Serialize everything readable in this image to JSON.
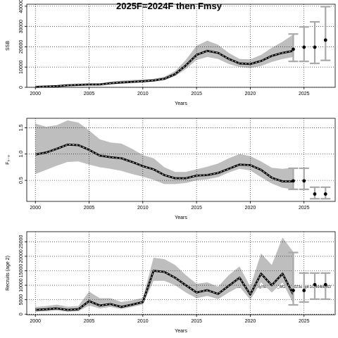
{
  "title": "2025F=2024F then Fmsy",
  "footer": "stockassessment.org:NWW005_WGBC_2023a : git:1c2464b6063",
  "colors": {
    "band": "#bebebe",
    "line": "#000000",
    "projection_ci": "#a9a9a9",
    "grid": "#000000"
  },
  "chart_data": [
    {
      "type": "line",
      "name": "ssb",
      "xlabel": "Years",
      "ylabel": "SSB",
      "xlim": [
        1999.2,
        2027.9
      ],
      "ylim": [
        0,
        41000
      ],
      "xticks": [
        2000,
        2005,
        2010,
        2015,
        2020,
        2025
      ],
      "yticks": [
        0,
        10000,
        20000,
        30000,
        40000
      ],
      "grid": true,
      "x": [
        2000,
        2001,
        2002,
        2003,
        2004,
        2005,
        2006,
        2007,
        2008,
        2009,
        2010,
        2011,
        2012,
        2013,
        2014,
        2015,
        2016,
        2017,
        2018,
        2019,
        2020,
        2021,
        2022,
        2023,
        2024
      ],
      "estimate": [
        200,
        400,
        600,
        1000,
        1200,
        1400,
        1400,
        2000,
        2400,
        2700,
        3000,
        3400,
        4200,
        6500,
        10800,
        16000,
        18000,
        17000,
        14000,
        11800,
        11500,
        13000,
        15500,
        17000,
        18000
      ],
      "lower": [
        100,
        250,
        450,
        700,
        900,
        1000,
        1000,
        1500,
        1800,
        2100,
        2400,
        2800,
        3500,
        5500,
        9000,
        13500,
        15000,
        14000,
        11500,
        10000,
        9500,
        10500,
        12500,
        14000,
        15000
      ],
      "upper": [
        350,
        600,
        900,
        1400,
        1700,
        1900,
        2000,
        2800,
        3300,
        3600,
        3900,
        4200,
        5200,
        8000,
        13500,
        20500,
        23000,
        21000,
        17000,
        14000,
        13800,
        16000,
        19500,
        22500,
        26000
      ],
      "projection": [
        {
          "x": 2024,
          "value": 18800,
          "low": 12800,
          "high": 26300
        },
        {
          "x": 2025,
          "value": 19800,
          "low": 12800,
          "high": 29800
        },
        {
          "x": 2026,
          "value": 19800,
          "low": 11800,
          "high": 32300
        },
        {
          "x": 2027,
          "value": 23300,
          "low": 13300,
          "high": 39800
        }
      ]
    },
    {
      "type": "line",
      "name": "fbar",
      "xlabel": "Years",
      "ylabel": "F₅₋₈",
      "xlim": [
        1999.2,
        2027.9
      ],
      "ylim": [
        0.1,
        1.68
      ],
      "xticks": [
        2000,
        2005,
        2010,
        2015,
        2020,
        2025
      ],
      "yticks": [
        0.5,
        1.0,
        1.5
      ],
      "ytick_labels": [
        "0.5",
        "1.0",
        "1.5"
      ],
      "grid": true,
      "x": [
        2000,
        2001,
        2002,
        2003,
        2004,
        2005,
        2006,
        2007,
        2008,
        2009,
        2010,
        2011,
        2012,
        2013,
        2014,
        2015,
        2016,
        2017,
        2018,
        2019,
        2020,
        2021,
        2022,
        2023,
        2024
      ],
      "estimate": [
        0.99,
        1.03,
        1.1,
        1.18,
        1.17,
        1.08,
        0.97,
        0.94,
        0.92,
        0.85,
        0.77,
        0.71,
        0.6,
        0.54,
        0.54,
        0.59,
        0.6,
        0.64,
        0.72,
        0.8,
        0.79,
        0.7,
        0.55,
        0.48,
        0.48
      ],
      "lower": [
        0.62,
        0.7,
        0.78,
        0.85,
        0.86,
        0.8,
        0.75,
        0.72,
        0.68,
        0.62,
        0.57,
        0.51,
        0.43,
        0.43,
        0.45,
        0.5,
        0.52,
        0.56,
        0.65,
        0.72,
        0.69,
        0.56,
        0.44,
        0.36,
        0.33
      ],
      "upper": [
        1.58,
        1.52,
        1.55,
        1.64,
        1.6,
        1.45,
        1.28,
        1.22,
        1.2,
        1.1,
        0.98,
        0.92,
        0.75,
        0.66,
        0.66,
        0.71,
        0.76,
        0.82,
        0.92,
        1.0,
        0.96,
        0.86,
        0.74,
        0.72,
        0.74
      ],
      "projection": [
        {
          "x": 2024,
          "value": 0.49,
          "low": 0.33,
          "high": 0.73
        },
        {
          "x": 2025,
          "value": 0.49,
          "low": 0.33,
          "high": 0.73
        },
        {
          "x": 2026,
          "value": 0.24,
          "low": 0.15,
          "high": 0.37
        },
        {
          "x": 2027,
          "value": 0.24,
          "low": 0.15,
          "high": 0.37
        }
      ]
    },
    {
      "type": "line",
      "name": "recruits",
      "xlabel": "Years",
      "ylabel": "Recruits (age 2)",
      "xlim": [
        1999.2,
        2027.9
      ],
      "ylim": [
        -200,
        28500
      ],
      "xticks": [
        2000,
        2005,
        2010,
        2015,
        2020,
        2025
      ],
      "yticks": [
        0,
        5000,
        10000,
        15000,
        20000,
        25000
      ],
      "grid": true,
      "x": [
        2000,
        2001,
        2002,
        2003,
        2004,
        2005,
        2006,
        2007,
        2008,
        2009,
        2010,
        2011,
        2012,
        2013,
        2014,
        2015,
        2016,
        2017,
        2018,
        2019,
        2020,
        2021,
        2022,
        2023,
        2024
      ],
      "estimate": [
        1500,
        1700,
        2000,
        1500,
        1700,
        4500,
        3000,
        3500,
        2500,
        3300,
        4200,
        15000,
        14600,
        12600,
        10000,
        7500,
        8300,
        7000,
        9800,
        12600,
        6800,
        14000,
        10000,
        14000,
        6800
      ],
      "lower": [
        800,
        1000,
        1300,
        800,
        1000,
        3000,
        2000,
        2500,
        1800,
        2500,
        3300,
        11500,
        11500,
        10000,
        7500,
        5500,
        6300,
        5200,
        7500,
        9500,
        5000,
        11000,
        7500,
        11000,
        3700
      ],
      "upper": [
        2500,
        2800,
        3300,
        2600,
        2800,
        7800,
        5500,
        5500,
        4200,
        4800,
        5600,
        19500,
        19000,
        17000,
        13500,
        10500,
        11000,
        9500,
        13500,
        16500,
        9500,
        21000,
        17000,
        26500,
        21500
      ],
      "projection": [
        {
          "x": 2024,
          "value": 8200,
          "low": 3200,
          "high": 21300
        },
        {
          "x": 2025,
          "value": 8200,
          "low": 4200,
          "high": 14200
        },
        {
          "x": 2026,
          "value": 10200,
          "low": 5200,
          "high": 14200
        },
        {
          "x": 2027,
          "value": 10200,
          "low": 5200,
          "high": 14200
        }
      ]
    }
  ]
}
